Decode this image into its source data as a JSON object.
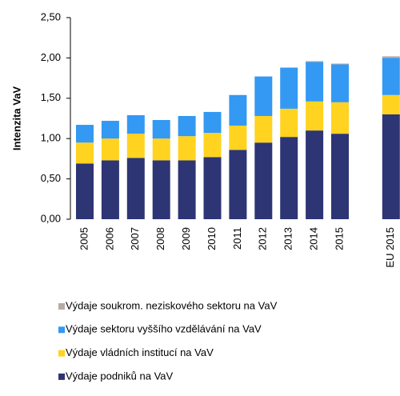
{
  "chart_data": {
    "type": "stacked_bar",
    "y_label": "Intenzita VaV",
    "categories": [
      "2005",
      "2006",
      "2007",
      "2008",
      "2009",
      "2010",
      "2011",
      "2012",
      "2013",
      "2014",
      "2015",
      null,
      "EU 2015"
    ],
    "series": [
      {
        "name": "Výdaje podniků na VaV",
        "color": "#2e3575",
        "values": [
          0.69,
          0.73,
          0.76,
          0.73,
          0.73,
          0.77,
          0.86,
          0.95,
          1.02,
          1.1,
          1.06,
          null,
          1.3
        ]
      },
      {
        "name": "Výdaje vládních institucí na VaV",
        "color": "#ffd320",
        "values": [
          0.26,
          0.27,
          0.3,
          0.27,
          0.3,
          0.3,
          0.3,
          0.33,
          0.35,
          0.36,
          0.39,
          null,
          0.24
        ]
      },
      {
        "name": "Výdaje sektoru vyššího vzdělávání na VaV",
        "color": "#3399f3",
        "values": [
          0.22,
          0.22,
          0.23,
          0.23,
          0.25,
          0.26,
          0.38,
          0.49,
          0.51,
          0.49,
          0.47,
          null,
          0.46
        ]
      },
      {
        "name": "Výdaje soukrom. neziskového sektoru na VaV",
        "color": "#b8a9a9",
        "values": [
          0.0,
          0.0,
          0.0,
          0.0,
          0.0,
          0.0,
          0.0,
          0.0,
          0.0,
          0.01,
          0.01,
          null,
          0.02
        ]
      }
    ],
    "ylim": [
      0,
      2.5
    ],
    "yticks": [
      {
        "value": 0,
        "label": "0,00"
      },
      {
        "value": 0.5,
        "label": "0,50"
      },
      {
        "value": 1,
        "label": "1,00"
      },
      {
        "value": 1.5,
        "label": "1,50"
      },
      {
        "value": 2,
        "label": "2,00"
      },
      {
        "value": 2.5,
        "label": "2,50"
      }
    ],
    "grid": false
  }
}
